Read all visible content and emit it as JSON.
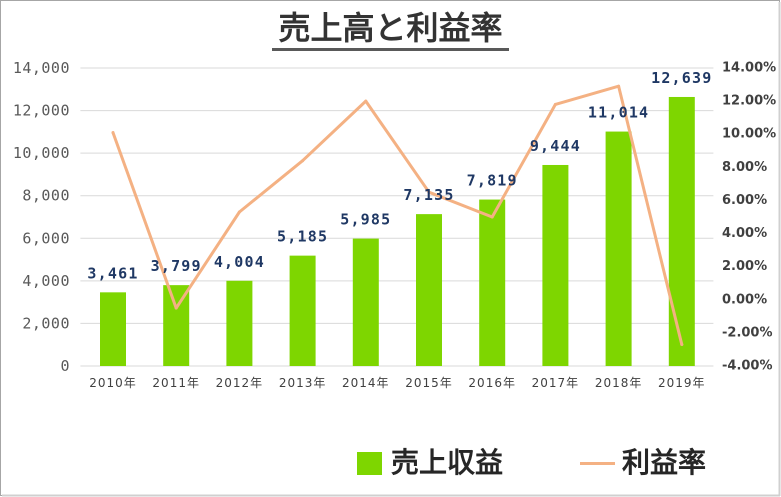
{
  "chart_data": {
    "type": "bar",
    "title": "売上高と利益率",
    "categories": [
      "2010年",
      "2011年",
      "2012年",
      "2013年",
      "2014年",
      "2015年",
      "2016年",
      "2017年",
      "2018年",
      "2019年"
    ],
    "series": [
      {
        "name": "売上収益",
        "type": "bar",
        "y_axis": "left",
        "values": [
          3461,
          3799,
          4004,
          5185,
          5985,
          7135,
          7819,
          9444,
          11014,
          12639
        ],
        "data_labels": [
          "3,461",
          "3,799",
          "4,004",
          "5,185",
          "5,985",
          "7,135",
          "7,819",
          "9,444",
          "11,014",
          "12,639"
        ],
        "color": "#7ED600"
      },
      {
        "name": "利益率",
        "type": "line",
        "y_axis": "right",
        "values": [
          10.1,
          -0.5,
          5.3,
          8.4,
          12.0,
          6.5,
          5.0,
          11.8,
          12.9,
          -2.7
        ],
        "color": "#F4B183"
      }
    ],
    "y_left": {
      "min": 0,
      "max": 14000,
      "step": 2000,
      "tick_labels": [
        "0",
        "2,000",
        "4,000",
        "6,000",
        "8,000",
        "10,000",
        "12,000",
        "14,000"
      ]
    },
    "y_right": {
      "min": -4,
      "max": 14,
      "step": 2,
      "tick_labels": [
        "-4.00%",
        "-2.00%",
        "0.00%",
        "2.00%",
        "4.00%",
        "6.00%",
        "8.00%",
        "10.00%",
        "12.00%",
        "14.00%"
      ]
    },
    "grid": true,
    "legend": "bottom",
    "data_label_color": "#1F3864",
    "grid_color": "#D9D9D9",
    "frame_color": "#A6A6A6"
  }
}
